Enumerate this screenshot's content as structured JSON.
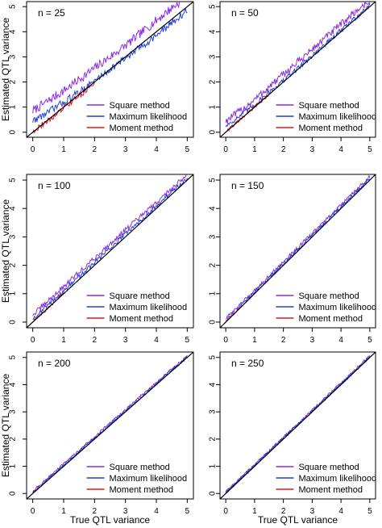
{
  "figure": {
    "ylabel": "Estimated QTL variance",
    "xlabel": "True QTL variance"
  },
  "legend": [
    {
      "label": "Square method",
      "color": "#8a2be2"
    },
    {
      "label": "Maximum likelihood",
      "color": "#1f3fdc"
    },
    {
      "label": "Moment method",
      "color": "#e8141c"
    }
  ],
  "chart_data": [
    {
      "type": "line",
      "title": "n = 25",
      "xlim": [
        0,
        5
      ],
      "ylim": [
        0,
        5
      ],
      "xticks": [
        0,
        1,
        2,
        3,
        4,
        5
      ],
      "yticks": [
        0,
        1,
        2,
        3,
        4,
        5
      ],
      "series": [
        {
          "name": "Square method",
          "x": [
            0,
            0.5,
            1,
            1.5,
            2,
            2.5,
            3,
            3.5,
            4,
            4.5,
            5
          ],
          "y": [
            0.85,
            1.25,
            1.65,
            2.1,
            2.55,
            3.0,
            3.45,
            3.95,
            4.45,
            4.95,
            5.4
          ],
          "noise": 0.18
        },
        {
          "name": "Maximum likelihood",
          "x": [
            0,
            0.5,
            1,
            1.5,
            2,
            2.5,
            3,
            3.5,
            4,
            4.5,
            5
          ],
          "y": [
            0.45,
            0.8,
            1.2,
            1.6,
            2.05,
            2.5,
            2.95,
            3.4,
            3.85,
            4.35,
            4.85
          ],
          "noise": 0.14
        },
        {
          "name": "Moment method",
          "x": [
            0,
            0.5,
            1,
            1.5,
            2
          ],
          "y": [
            0.05,
            0.45,
            0.95,
            1.45,
            1.95
          ],
          "noise": 0.12
        }
      ]
    },
    {
      "type": "line",
      "title": "n = 50",
      "xlim": [
        0,
        5
      ],
      "ylim": [
        0,
        5
      ],
      "xticks": [
        0,
        1,
        2,
        3,
        4,
        5
      ],
      "yticks": [
        0,
        1,
        2,
        3,
        4,
        5
      ],
      "series": [
        {
          "name": "Square method",
          "x": [
            0,
            0.5,
            1,
            1.5,
            2,
            2.5,
            3,
            3.5,
            4,
            4.5,
            5
          ],
          "y": [
            0.45,
            0.85,
            1.3,
            1.8,
            2.3,
            2.8,
            3.3,
            3.8,
            4.3,
            4.8,
            5.25
          ],
          "noise": 0.15
        },
        {
          "name": "Maximum likelihood",
          "x": [
            0,
            0.5,
            1,
            1.5,
            2,
            2.5,
            3,
            3.5,
            4,
            4.5,
            5
          ],
          "y": [
            0.25,
            0.65,
            1.1,
            1.6,
            2.05,
            2.55,
            3.05,
            3.55,
            4.05,
            4.55,
            5.05
          ],
          "noise": 0.1
        },
        {
          "name": "Moment method",
          "x": [
            0,
            0.5,
            1,
            1.5
          ],
          "y": [
            0.02,
            0.5,
            1.0,
            1.5
          ],
          "noise": 0.06
        }
      ]
    },
    {
      "type": "line",
      "title": "n = 100",
      "xlim": [
        0,
        5
      ],
      "ylim": [
        0,
        5
      ],
      "xticks": [
        0,
        1,
        2,
        3,
        4,
        5
      ],
      "yticks": [
        0,
        1,
        2,
        3,
        4,
        5
      ],
      "series": [
        {
          "name": "Square method",
          "x": [
            0,
            1,
            2,
            3,
            4,
            5
          ],
          "y": [
            0.25,
            1.25,
            2.25,
            3.25,
            4.2,
            5.2
          ],
          "noise": 0.09
        },
        {
          "name": "Maximum likelihood",
          "x": [
            0,
            1,
            2,
            3,
            4,
            5
          ],
          "y": [
            0.12,
            1.1,
            2.1,
            3.1,
            4.1,
            5.05
          ],
          "noise": 0.08
        },
        {
          "name": "Moment method",
          "x": [
            0,
            0.5,
            1
          ],
          "y": [
            0.02,
            0.5,
            1.02
          ],
          "noise": 0.05
        }
      ]
    },
    {
      "type": "line",
      "title": "n = 150",
      "xlim": [
        0,
        5
      ],
      "ylim": [
        0,
        5
      ],
      "xticks": [
        0,
        1,
        2,
        3,
        4,
        5
      ],
      "yticks": [
        0,
        1,
        2,
        3,
        4,
        5
      ],
      "series": [
        {
          "name": "Square method",
          "x": [
            0,
            1,
            2,
            3,
            4,
            5
          ],
          "y": [
            0.12,
            1.12,
            2.12,
            3.12,
            4.12,
            5.12
          ],
          "noise": 0.06
        },
        {
          "name": "Maximum likelihood",
          "x": [
            0,
            1,
            2,
            3,
            4,
            5
          ],
          "y": [
            0.06,
            1.05,
            2.05,
            3.05,
            4.05,
            5.05
          ],
          "noise": 0.06
        },
        {
          "name": "Moment method",
          "x": [
            0,
            0.5
          ],
          "y": [
            0.01,
            0.51
          ],
          "noise": 0.03
        }
      ]
    },
    {
      "type": "line",
      "title": "n = 200",
      "xlim": [
        0,
        5
      ],
      "ylim": [
        0,
        5
      ],
      "xticks": [
        0,
        1,
        2,
        3,
        4,
        5
      ],
      "yticks": [
        0,
        1,
        2,
        3,
        4,
        5
      ],
      "series": [
        {
          "name": "Square method",
          "x": [
            0,
            1,
            2,
            3,
            4,
            5
          ],
          "y": [
            0.08,
            1.08,
            2.08,
            3.08,
            4.08,
            5.05
          ],
          "noise": 0.05
        },
        {
          "name": "Maximum likelihood",
          "x": [
            0,
            1,
            2,
            3,
            4,
            5
          ],
          "y": [
            0.04,
            1.04,
            2.04,
            3.04,
            4.04,
            5.02
          ],
          "noise": 0.05
        },
        {
          "name": "Moment method",
          "x": [
            0,
            0.3
          ],
          "y": [
            0.01,
            0.31
          ],
          "noise": 0.02
        }
      ]
    },
    {
      "type": "line",
      "title": "n = 250",
      "xlim": [
        0,
        5
      ],
      "ylim": [
        0,
        5
      ],
      "xticks": [
        0,
        1,
        2,
        3,
        4,
        5
      ],
      "yticks": [
        0,
        1,
        2,
        3,
        4,
        5
      ],
      "series": [
        {
          "name": "Square method",
          "x": [
            0,
            1,
            2,
            3,
            4,
            5
          ],
          "y": [
            0.06,
            1.06,
            2.06,
            3.06,
            4.06,
            5.05
          ],
          "noise": 0.05
        },
        {
          "name": "Maximum likelihood",
          "x": [
            0,
            1,
            2,
            3,
            4,
            5
          ],
          "y": [
            0.03,
            1.03,
            2.03,
            3.03,
            4.03,
            5.02
          ],
          "noise": 0.05
        },
        {
          "name": "Moment method",
          "x": [
            0,
            0.3
          ],
          "y": [
            0.01,
            0.31
          ],
          "noise": 0.02
        }
      ]
    }
  ]
}
